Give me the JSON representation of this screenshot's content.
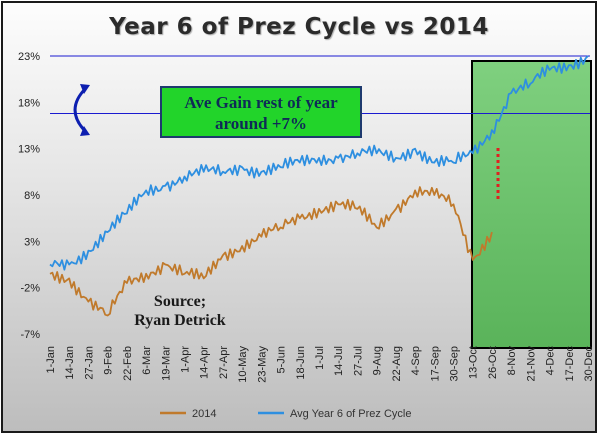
{
  "chart_data": {
    "type": "line",
    "title": "Year 6 of Prez Cycle vs 2014",
    "categories": [
      "1-Jan",
      "14-Jan",
      "27-Jan",
      "9-Feb",
      "22-Feb",
      "6-Mar",
      "19-Mar",
      "1-Apr",
      "14-Apr",
      "27-Apr",
      "10-May",
      "23-May",
      "5-Jun",
      "18-Jun",
      "1-Jul",
      "14-Jul",
      "27-Jul",
      "9-Aug",
      "22-Aug",
      "4-Sep",
      "17-Sep",
      "30-Sep",
      "13-Oct",
      "26-Oct",
      "8-Nov",
      "21-Nov",
      "4-Dec",
      "17-Dec",
      "30-Dec"
    ],
    "y_ticks": [
      "23%",
      "18%",
      "13%",
      "8%",
      "3%",
      "-2%",
      "-7%"
    ],
    "ylim": [
      -7,
      23
    ],
    "series": [
      {
        "name": "2014",
        "color": "#c07a2c",
        "values": [
          -0.5,
          -1.0,
          -3.5,
          -5.0,
          -1.5,
          -0.5,
          0.5,
          -0.5,
          -1.0,
          1.5,
          2.5,
          3.5,
          4.5,
          5.5,
          6.5,
          7.0,
          6.5,
          4.5,
          6.5,
          8.5,
          8.0,
          7.0,
          1.0,
          4.0,
          null,
          null,
          null,
          null,
          null
        ]
      },
      {
        "name": "Avg Year 6 of Prez Cycle",
        "color": "#2e8fe0",
        "values": [
          0.5,
          0.5,
          2.0,
          4.0,
          6.0,
          8.5,
          9.0,
          10.0,
          10.5,
          10.5,
          11.0,
          10.5,
          11.0,
          11.5,
          12.0,
          12.0,
          12.5,
          12.5,
          12.0,
          13.0,
          11.5,
          11.5,
          12.5,
          15.0,
          19.0,
          20.0,
          21.5,
          22.0,
          23.0
        ]
      }
    ],
    "legend_position": "bottom",
    "grid": false
  },
  "annotations": {
    "callout_line1": "Ave Gain rest of year",
    "callout_line2": "around +7%",
    "source_line1": "Source;",
    "source_line2": "Ryan Detrick",
    "highlight_color": "#6fc46f",
    "callout_color": "#22d42a"
  }
}
